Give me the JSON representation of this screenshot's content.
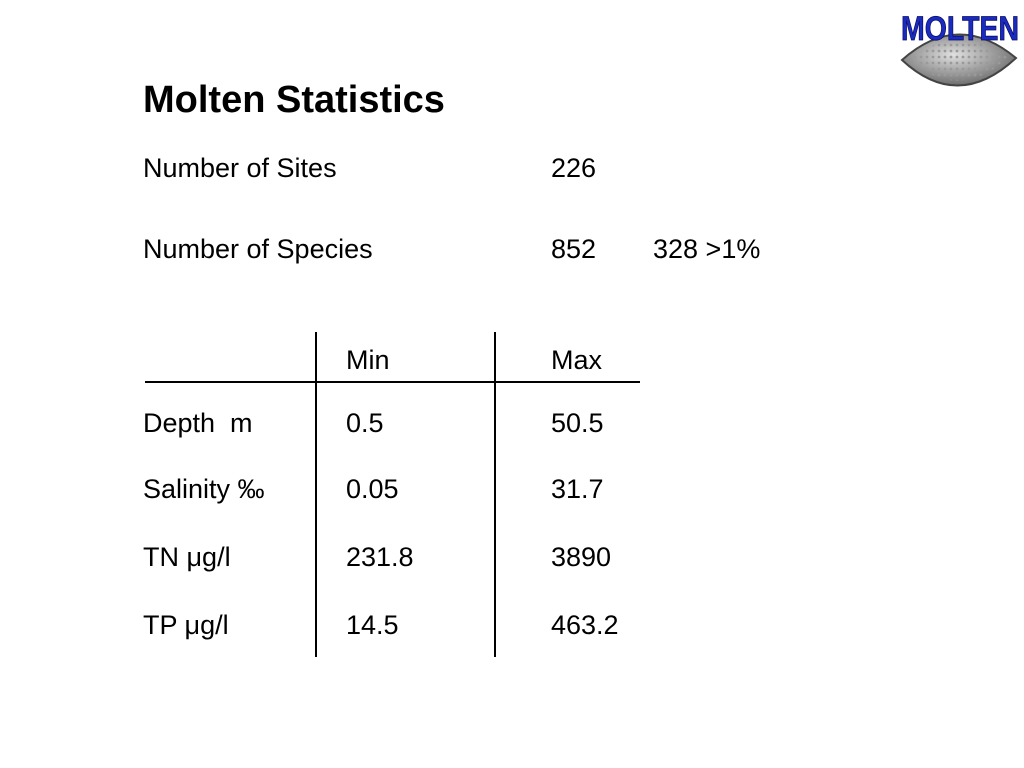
{
  "logo": "MOLTEN",
  "title": "Molten Statistics",
  "stats": [
    {
      "label": "Number of Sites",
      "value": "226"
    },
    {
      "label": "Number of Species",
      "value": "852",
      "note": "328 >1%"
    }
  ],
  "table": {
    "header": [
      "Min",
      "Max"
    ],
    "rows": [
      [
        "Depth  m",
        "0.5",
        "50.5"
      ],
      [
        "Salinity ‰",
        "0.05",
        "31.7"
      ],
      [
        "TN μg/l",
        "231.8",
        "3890"
      ],
      [
        "TP μg/l",
        "14.5",
        "463.2"
      ]
    ]
  }
}
